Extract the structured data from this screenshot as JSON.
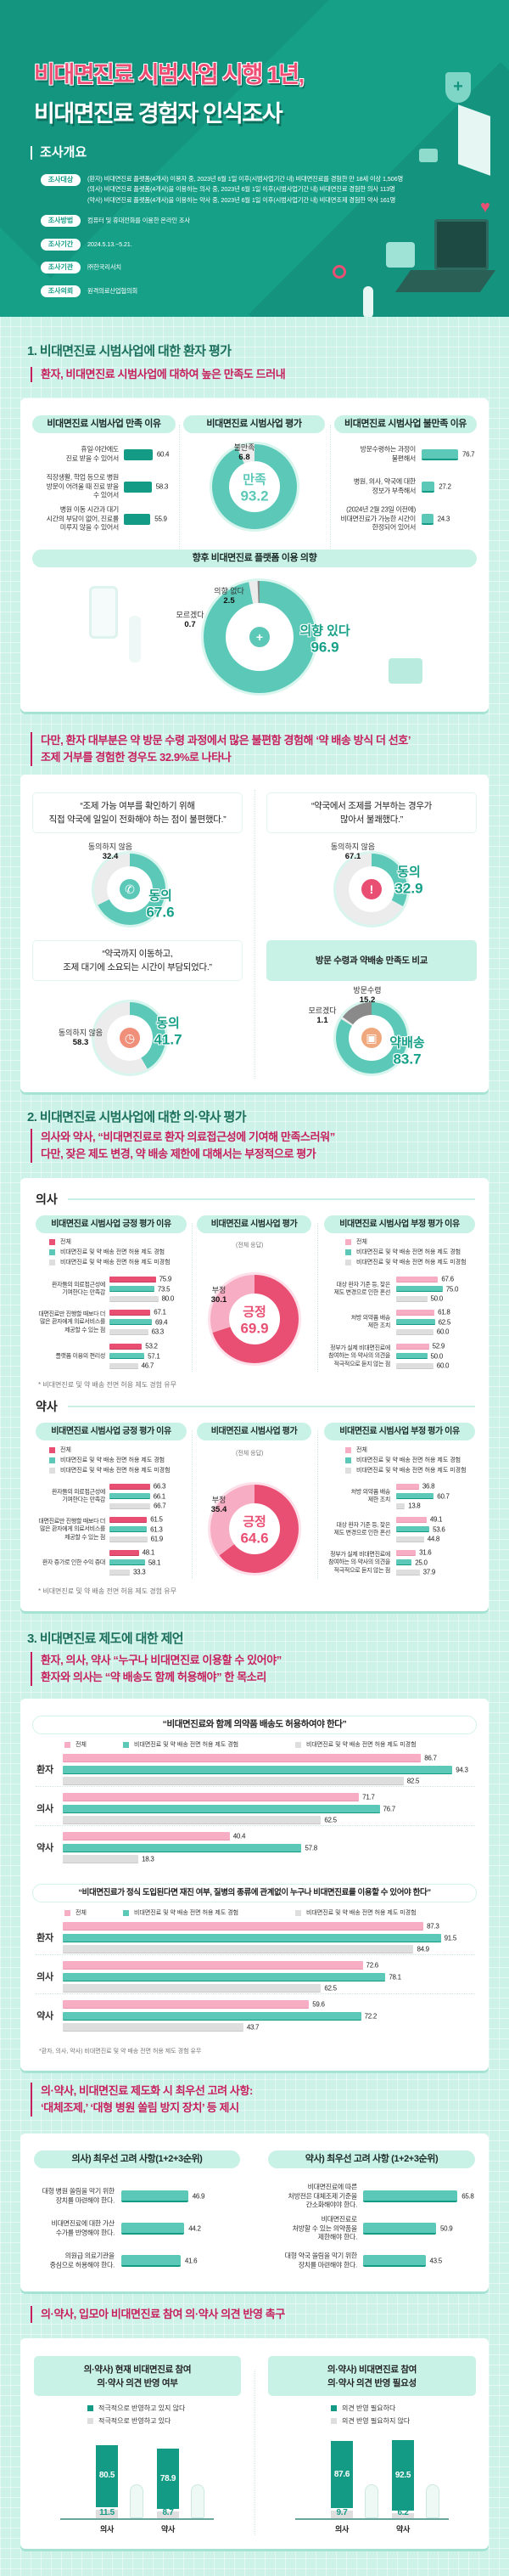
{
  "header": {
    "title_line1": "비대면진료 시범사업 시행 1년,",
    "title_line2": "비대면진료 경험자 인식조사",
    "overview_heading": "조사개요",
    "overview": [
      {
        "label": "조사대상",
        "text": "(환자) 비대면진료 플랫폼(4개사) 이용자 중, 2023년 6월 1일 이후(시범사업기간 내) 비대면진료를 경험한 만 18세 이상 1,506명\n(의사) 비대면진료 플랫폼(4개사)을 이용하는 의사 중, 2023년 6월 1일 이후(시범사업기간 내) 비대면진료 경험한 의사 113명\n(약사) 비대면진료 플랫폼(4개사)을 이용하는 약사 중, 2023년 6월 1일 이후(시범사업기간 내) 비대면조제 경험한 약사 161명"
      },
      {
        "label": "조사방법",
        "text": "컴퓨터 및 휴대전화를 이용한 온라인 조사"
      },
      {
        "label": "조사기간",
        "text": "2024.5.13.~5.21."
      },
      {
        "label": "조사기관",
        "text": "㈜한국리서치"
      },
      {
        "label": "조사의뢰",
        "text": "원격의료산업협의회"
      }
    ]
  },
  "section1": {
    "heading": "1. 비대면진료 시범사업에 대한 환자 평가",
    "subtitle": "환자, 비대면진료 시범사업에 대하여 높은 만족도 드러내"
  },
  "highlight1": "다만, 환자 대부분은 약 방문 수령 과정에서 많은 불편함 경험해 ‘약 배송 방식 더 선호’\n조제 거부를 경험한 경우도 32.9%로 나타나",
  "section2": {
    "heading": "2. 비대면진료 시범사업에 대한 의·약사 평가",
    "subtitle": "의사와 약사, “비대면진료로 환자 의료접근성에 기여해 만족스러워”\n다만, 잦은 제도 변경, 약 배송 제한에 대해서는 부정적으로 평가",
    "doctor_label": "의사",
    "pharmacist_label": "약사",
    "overall_note": "(전체 응답)",
    "footnote": "* 비대면진료 및 약 배송 전면 허용 제도 경험 유무"
  },
  "section3": {
    "heading": "3. 비대면진료 제도에 대한 제언",
    "subtitle": "환자, 의사, 약사 “누구나 비대면진료 이용할 수 있어야”\n환자와 의사는 “약 배송도 함께 허용해야” 한 목소리",
    "footnote": "*환자, 의사, 약사) 비대면진료 및 약 배송 전면 허용 제도 경험 유무"
  },
  "section4": {
    "subtitle": "의·약사, 비대면진료 제도화 시 최우선 고려 사항:\n‘대체조제,’ ‘대형 병원 쏠림 방지 장치’ 등 제시"
  },
  "section5": {
    "subtitle": "의·약사, 입모아 비대면진료 참여 의·약사 의견 반영 촉구"
  },
  "legend3": [
    "전체",
    "비대면진료 및 약 배송 전면 허용 제도 경험",
    "비대면진료 및 약 배송 전면 허용 제도 미경험"
  ],
  "colors": {
    "teal": "#5cc8b8",
    "dark_teal": "#149b85",
    "pink": "#e84f72",
    "light_pink": "#f7aec5",
    "gray": "#dedede",
    "mid_gray": "#8a8a8a",
    "light_gray": "#ececec"
  },
  "chart_data": [
    {
      "type": "bar",
      "title": "비대면진료 시범사업 만족 이유",
      "categories": [
        "휴일·야간에도\n진료 받을 수 있어서",
        "직장생활, 학업 등으로 병원\n방문이 어려울 때 진료 받을\n수 있어서",
        "병원 이동 시간과 대기\n시간의 부담이 없어, 진료를\n미루지 않을 수 있어서"
      ],
      "values": [
        60.4,
        58.3,
        55.9
      ]
    },
    {
      "type": "pie",
      "title": "비대면진료 시범사업 평가",
      "labels": [
        "만족",
        "불만족"
      ],
      "values": [
        93.2,
        6.8
      ],
      "colors": [
        "#5cc8b8",
        "#ececec"
      ]
    },
    {
      "type": "bar",
      "title": "비대면진료 시범사업 불만족 이유",
      "categories": [
        "방문수령하는 과정이\n불편해서",
        "병원, 의사, 약국에 대한\n정보가 부족해서",
        "(2024년 2월 23일 이전에)\n비대면진료가 가능한 시간이\n한정되어 있어서"
      ],
      "values": [
        76.7,
        27.2,
        24.3
      ]
    },
    {
      "type": "pie",
      "title": "향후 비대면진료 플랫폼 이용 의향",
      "labels": [
        "의향 있다",
        "의향 없다",
        "모르겠다"
      ],
      "values": [
        96.9,
        2.5,
        0.7
      ],
      "colors": [
        "#5cc8b8",
        "#ececec",
        "#8a8a8a"
      ]
    },
    {
      "type": "pie",
      "title": "“조제 가능 여부를 확인하기 위해\n직접 약국에 일일이 전화해야 하는 점이 불편했다.”",
      "labels": [
        "동의",
        "동의하지 않음"
      ],
      "values": [
        67.6,
        32.4
      ],
      "colors": [
        "#5cc8b8",
        "#ececec"
      ]
    },
    {
      "type": "pie",
      "title": "“약국에서 조제를 거부하는 경우가\n많아서 불쾌했다.”",
      "labels": [
        "동의",
        "동의하지 않음"
      ],
      "values": [
        32.9,
        67.1
      ],
      "colors": [
        "#5cc8b8",
        "#ececec"
      ]
    },
    {
      "type": "pie",
      "title": "“약국까지 이동하고,\n조제 대기에 소요되는 시간이 부담되었다.”",
      "labels": [
        "동의",
        "동의하지 않음"
      ],
      "values": [
        41.7,
        58.3
      ],
      "colors": [
        "#5cc8b8",
        "#ececec"
      ]
    },
    {
      "type": "pie",
      "title": "방문 수령과 약배송 만족도 비교",
      "labels": [
        "약배송",
        "모르겠다",
        "방문수령"
      ],
      "values": [
        83.7,
        1.1,
        15.2
      ],
      "colors": [
        "#5cc8b8",
        "#ececec",
        "#8a8a8a"
      ]
    },
    {
      "type": "bar",
      "title": "비대면진료 시범사업 긍정 평가 이유",
      "categories": [
        "환자들의 의료접근성에\n기여한다는 만족감",
        "대면진료만 진행할 때보다 더\n많은 환자에게 의료서비스를\n제공할 수 있는 점",
        "플랫폼 이용의 편리성"
      ],
      "series": [
        {
          "name": "전체",
          "values": [
            75.9,
            67.1,
            53.2
          ]
        },
        {
          "name": "비대면진료 및 약 배송 전면 허용 제도 경험",
          "values": [
            73.5,
            69.4,
            57.1
          ]
        },
        {
          "name": "비대면진료 및 약 배송 전면 허용 제도 미경험",
          "values": [
            80.0,
            63.3,
            46.7
          ]
        }
      ]
    },
    {
      "type": "pie",
      "title": "비대면진료 시범사업 평가",
      "labels": [
        "긍정",
        "부정"
      ],
      "values": [
        69.9,
        30.1
      ],
      "colors": [
        "#e84f72",
        "#f7aec5"
      ]
    },
    {
      "type": "bar",
      "title": "비대면진료 시범사업 부정 평가 이유",
      "categories": [
        "대상 환자 기준 등, 잦은\n제도 변경으로 인한 혼선",
        "처방 의약품 배송\n제한 조치",
        "정부가 실제 비대면진료에\n참여하는 의·약사의 의견을\n적극적으로 듣지 않는 점"
      ],
      "series": [
        {
          "name": "전체",
          "values": [
            67.6,
            61.8,
            52.9
          ]
        },
        {
          "name": "비대면진료 및 약 배송 전면 허용 제도 경험",
          "values": [
            75.0,
            62.5,
            50.0
          ]
        },
        {
          "name": "비대면진료 및 약 배송 전면 허용 제도 미경험",
          "values": [
            50.0,
            60.0,
            60.0
          ]
        }
      ]
    },
    {
      "type": "bar",
      "title": "비대면진료 시범사업 긍정 평가 이유",
      "categories": [
        "환자들의 의료접근성에\n기여한다는 만족감",
        "대면진료만 진행할 때보다 더\n많은 환자에게 의료서비스를\n제공할 수 있는 점",
        "환자 증가로 인한 수익 증대"
      ],
      "series": [
        {
          "name": "전체",
          "values": [
            66.3,
            61.5,
            48.1
          ]
        },
        {
          "name": "비대면진료 및 약 배송 전면 허용 제도 경험",
          "values": [
            66.1,
            61.3,
            58.1
          ]
        },
        {
          "name": "비대면진료 및 약 배송 전면 허용 제도 미경험",
          "values": [
            66.7,
            61.9,
            33.3
          ]
        }
      ]
    },
    {
      "type": "pie",
      "title": "비대면진료 시범사업 평가",
      "labels": [
        "긍정",
        "부정"
      ],
      "values": [
        64.6,
        35.4
      ],
      "colors": [
        "#e84f72",
        "#f7aec5"
      ]
    },
    {
      "type": "bar",
      "title": "비대면진료 시범사업 부정 평가 이유",
      "categories": [
        "처방 의약품 배송\n제한 조치",
        "대상 환자 기준 등, 잦은\n제도 변경으로 인한 혼선",
        "정부가 실제 비대면진료에\n참여하는 의·약사의 의견을\n적극적으로 듣지 않는 점"
      ],
      "series": [
        {
          "name": "전체",
          "values": [
            36.8,
            49.1,
            31.6
          ]
        },
        {
          "name": "비대면진료 및 약 배송 전면 허용 제도 경험",
          "values": [
            60.7,
            53.6,
            25.0
          ]
        },
        {
          "name": "비대면진료 및 약 배송 전면 허용 제도 미경험",
          "values": [
            13.8,
            44.8,
            37.9
          ]
        }
      ]
    },
    {
      "type": "bar",
      "title": "“비대면진료와 함께 의약품 배송도 허용하여야 한다”",
      "categories": [
        "환자",
        "의사",
        "약사"
      ],
      "series": [
        {
          "name": "전체",
          "values": [
            86.7,
            71.7,
            40.4
          ]
        },
        {
          "name": "비대면진료 및 약 배송 전면 허용 제도 경험",
          "values": [
            94.3,
            76.7,
            57.8
          ]
        },
        {
          "name": "비대면진료 및 약 배송 전면 허용 제도 미경험",
          "values": [
            82.5,
            62.5,
            18.3
          ]
        }
      ]
    },
    {
      "type": "bar",
      "title": "“비대면진료가 정식 도입된다면 재진 여부, 질병의 종류에 관계없이 누구나 비대면진료를 이용할 수 있어야 한다”",
      "categories": [
        "환자",
        "의사",
        "약사"
      ],
      "series": [
        {
          "name": "전체",
          "values": [
            87.3,
            72.6,
            59.6
          ]
        },
        {
          "name": "비대면진료 및 약 배송 전면 허용 제도 경험",
          "values": [
            91.5,
            78.1,
            72.2
          ]
        },
        {
          "name": "비대면진료 및 약 배송 전면 허용 제도 미경험",
          "values": [
            84.9,
            62.5,
            43.7
          ]
        }
      ]
    },
    {
      "type": "bar",
      "title": "의사) 최우선 고려 사항(1+2+3순위)",
      "categories": [
        "대형 병원 쏠림을 막기 위한\n장치를 마련해야 한다.",
        "비대면진료에 대한 가산\n수가를 반영해야 한다.",
        "의원급 의료기관을\n중심으로 허용해야 한다."
      ],
      "values": [
        46.9,
        44.2,
        41.6
      ]
    },
    {
      "type": "bar",
      "title": "약사) 최우선 고려 사항 (1+2+3순위)",
      "categories": [
        "비대면진료에 따른\n처방전은 대체조제 기준을\n간소화해야야 한다.",
        "비대면진료로\n처방할 수 있는 의약품을\n제한해야 한다.",
        "대형 약국 쏠림을 막기 위한\n장치를 마련해야 한다."
      ],
      "values": [
        65.8,
        50.9,
        43.5
      ]
    },
    {
      "type": "bar",
      "stacked": true,
      "title": "의·약사) 현재 비대면진료 참여\n의·약사 의견 반영 여부",
      "categories": [
        "의사",
        "약사"
      ],
      "series": [
        {
          "name": "적극적으로 반영하고 있지 않다",
          "values": [
            80.5,
            78.9
          ]
        },
        {
          "name": "적극적으로 반영하고 있다",
          "values": [
            11.5,
            8.7
          ]
        }
      ]
    },
    {
      "type": "bar",
      "stacked": true,
      "title": "의·약사) 비대면진료 참여\n의·약사 의견 반영 필요성",
      "categories": [
        "의사",
        "약사"
      ],
      "series": [
        {
          "name": "의견 반영 필요하다",
          "values": [
            87.6,
            92.5
          ]
        },
        {
          "name": "의견 반영 필요하지 않다",
          "values": [
            9.7,
            6.2
          ]
        }
      ]
    }
  ]
}
